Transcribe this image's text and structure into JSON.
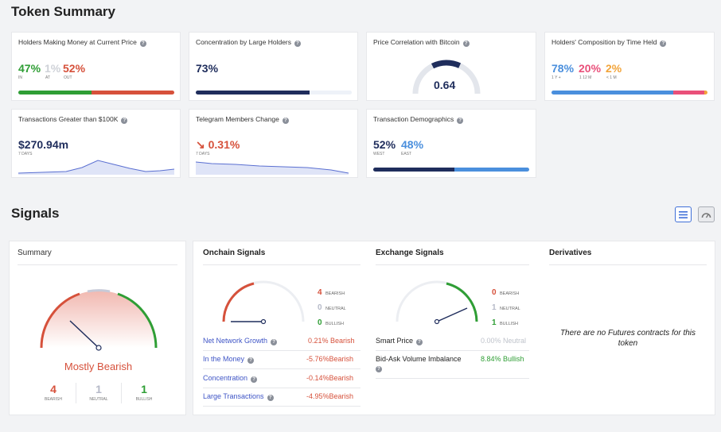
{
  "token_summary": {
    "title": "Token Summary",
    "holders_money": {
      "title": "Holders Making Money at Current Price",
      "in_value": "47%",
      "at_value": "1%",
      "out_value": "52%",
      "in_label": "IN",
      "at_label": "AT",
      "out_label": "OUT",
      "in_fraction": 0.47,
      "out_fraction": 0.53
    },
    "concentration": {
      "title": "Concentration by Large Holders",
      "value": "73%",
      "fraction": 0.73
    },
    "price_correlation": {
      "title": "Price Correlation with Bitcoin",
      "value": "0.64",
      "fraction": 0.64
    },
    "holders_composition": {
      "title": "Holders' Composition by Time Held",
      "v1": "78%",
      "v2": "20%",
      "v3": "2%",
      "l1": "1 Y +",
      "l2": "1 12 M",
      "l3": "< 1 M",
      "fractions": [
        0.78,
        0.2,
        0.02
      ]
    },
    "transactions_100k": {
      "title": "Transactions Greater than $100K",
      "value": "$270.94m",
      "period": "7 DAYS"
    },
    "telegram": {
      "title": "Telegram Members Change",
      "arrow": "↘",
      "value": "0.31%",
      "period": "7 DAYS"
    },
    "tx_demographics": {
      "title": "Transaction Demographics",
      "west_value": "52%",
      "east_value": "48%",
      "west_label": "WEST",
      "east_label": "EAST",
      "west_fraction": 0.52
    }
  },
  "signals": {
    "title": "Signals",
    "summary": {
      "title": "Summary",
      "verdict": "Mostly Bearish",
      "bearish_count": "4",
      "neutral_count": "1",
      "bullish_count": "1",
      "bearish_label": "BEARISH",
      "neutral_label": "NEUTRAL",
      "bullish_label": "BULLISH"
    },
    "onchain": {
      "title": "Onchain Signals",
      "bearish_count": "4",
      "neutral_count": "0",
      "bullish_count": "0",
      "bearish_label": "BEARISH",
      "neutral_label": "NEUTRAL",
      "bullish_label": "BULLISH",
      "rows": [
        {
          "name": "Net Network Growth",
          "value": "0.21%",
          "verdict": "Bearish"
        },
        {
          "name": "In the Money",
          "value": "-5.76%",
          "verdict": "Bearish"
        },
        {
          "name": "Concentration",
          "value": "-0.14%",
          "verdict": "Bearish"
        },
        {
          "name": "Large Transactions",
          "value": "-4.95%",
          "verdict": "Bearish"
        }
      ]
    },
    "exchange": {
      "title": "Exchange Signals",
      "bearish_count": "0",
      "neutral_count": "1",
      "bullish_count": "1",
      "bearish_label": "BEARISH",
      "neutral_label": "NEUTRAL",
      "bullish_label": "BULLISH",
      "rows": [
        {
          "name": "Smart Price",
          "value": "0.00%",
          "verdict": "Neutral"
        },
        {
          "name": "Bid-Ask Volume Imbalance",
          "value": "8.84%",
          "verdict": "Bullish"
        }
      ]
    },
    "derivatives": {
      "title": "Derivatives",
      "message": "There are no Futures contracts for this token"
    }
  },
  "colors": {
    "green": "#2f9e35",
    "red": "#d6513b",
    "navy": "#1f2d5c",
    "blue": "#4a8fdd",
    "pink": "#e9507a",
    "gray": "#bfc3cb"
  }
}
